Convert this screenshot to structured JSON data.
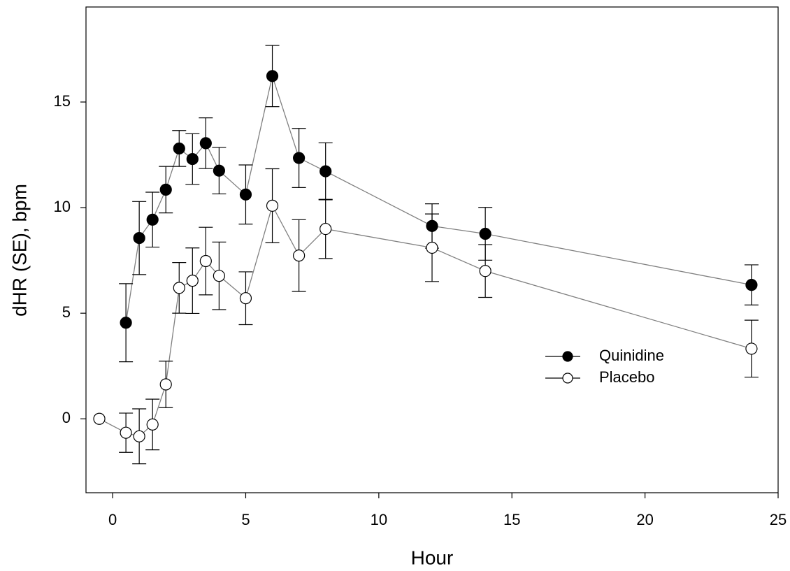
{
  "chart_data": {
    "type": "line",
    "x_label": "Hour",
    "y_label": "dHR (SE), bpm",
    "xlim": [
      -1,
      25
    ],
    "ylim": [
      -3.5,
      19.5
    ],
    "xticks": [
      0,
      5,
      10,
      15,
      20,
      25
    ],
    "yticks": [
      0,
      5,
      10,
      15
    ],
    "grid": false,
    "legend": "center right",
    "line_color": "#808080",
    "series": [
      {
        "name": "Quinidine",
        "color": "#000000",
        "x": [
          0.5,
          1,
          1.5,
          2,
          2.5,
          3,
          3.5,
          4,
          5,
          6,
          7,
          8,
          12,
          14,
          24
        ],
        "values": [
          4.55,
          8.56,
          9.43,
          10.85,
          12.8,
          12.3,
          13.05,
          11.75,
          10.62,
          16.23,
          12.35,
          11.72,
          9.13,
          8.76,
          6.34
        ],
        "errors": [
          1.85,
          1.73,
          1.3,
          1.1,
          0.85,
          1.2,
          1.2,
          1.1,
          1.4,
          1.45,
          1.4,
          1.35,
          1.05,
          1.25,
          0.95
        ]
      },
      {
        "name": "Placebo",
        "color": "#ffffff",
        "x": [
          -0.5,
          0.5,
          1,
          1.5,
          2,
          2.5,
          3,
          3.5,
          4,
          5,
          6,
          7,
          8,
          12,
          14,
          24
        ],
        "values": [
          0,
          -0.66,
          -0.83,
          -0.27,
          1.63,
          6.2,
          6.54,
          7.47,
          6.77,
          5.71,
          10.09,
          7.73,
          8.99,
          8.1,
          7.0,
          3.32
        ],
        "errors": [
          null,
          0.93,
          1.3,
          1.2,
          1.1,
          1.2,
          1.55,
          1.6,
          1.6,
          1.25,
          1.75,
          1.7,
          1.4,
          1.6,
          1.25,
          1.35
        ]
      }
    ]
  }
}
